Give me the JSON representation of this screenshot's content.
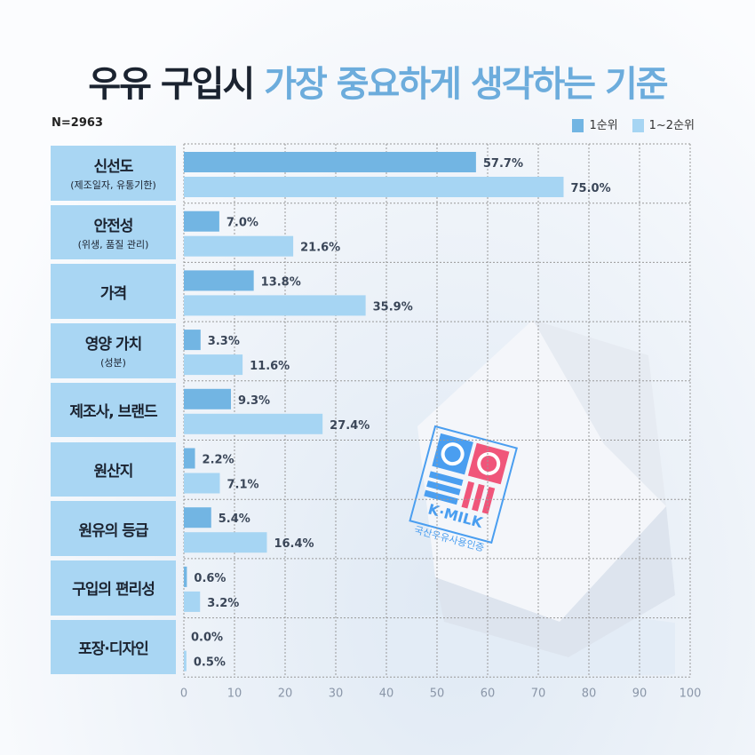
{
  "title": {
    "part1": "우유 구입시",
    "part2": "가장 중요하게 생각하는 기준"
  },
  "sample": "N=2963",
  "logo": {
    "brand": "K·MILK",
    "caption": "국산우유사용인증"
  },
  "chart_data": {
    "type": "bar",
    "orientation": "horizontal",
    "categories": [
      {
        "main": "신선도",
        "sub": "(제조일자, 유통기한)"
      },
      {
        "main": "안전성",
        "sub": "(위생, 품질 관리)"
      },
      {
        "main": "가격",
        "sub": ""
      },
      {
        "main": "영양 가치",
        "sub": "(성분)"
      },
      {
        "main": "제조사, 브랜드",
        "sub": ""
      },
      {
        "main": "원산지",
        "sub": ""
      },
      {
        "main": "원유의 등급",
        "sub": ""
      },
      {
        "main": "구입의 편리성",
        "sub": ""
      },
      {
        "main": "포장·디자인",
        "sub": ""
      }
    ],
    "series": [
      {
        "name": "1순위",
        "color": "#72b5e3",
        "values": [
          57.7,
          7.0,
          13.8,
          3.3,
          9.3,
          2.2,
          5.4,
          0.6,
          0.0
        ]
      },
      {
        "name": "1~2순위",
        "color": "#a6d5f3",
        "values": [
          75.0,
          21.6,
          35.9,
          11.6,
          27.4,
          7.1,
          16.4,
          3.2,
          0.5
        ]
      }
    ],
    "data_labels": [
      [
        "57.7%",
        "7.0%",
        "13.8%",
        "3.3%",
        "9.3%",
        "2.2%",
        "5.4%",
        "0.6%",
        "0.0%"
      ],
      [
        "75.0%",
        "21.6%",
        "35.9%",
        "11.6%",
        "27.4%",
        "7.1%",
        "16.4%",
        "3.2%",
        "0.5%"
      ]
    ],
    "xlim": [
      0,
      100
    ],
    "xticks": [
      0,
      10,
      20,
      30,
      40,
      50,
      60,
      70,
      80,
      90,
      100
    ],
    "grid": true,
    "legend": "top-right"
  }
}
